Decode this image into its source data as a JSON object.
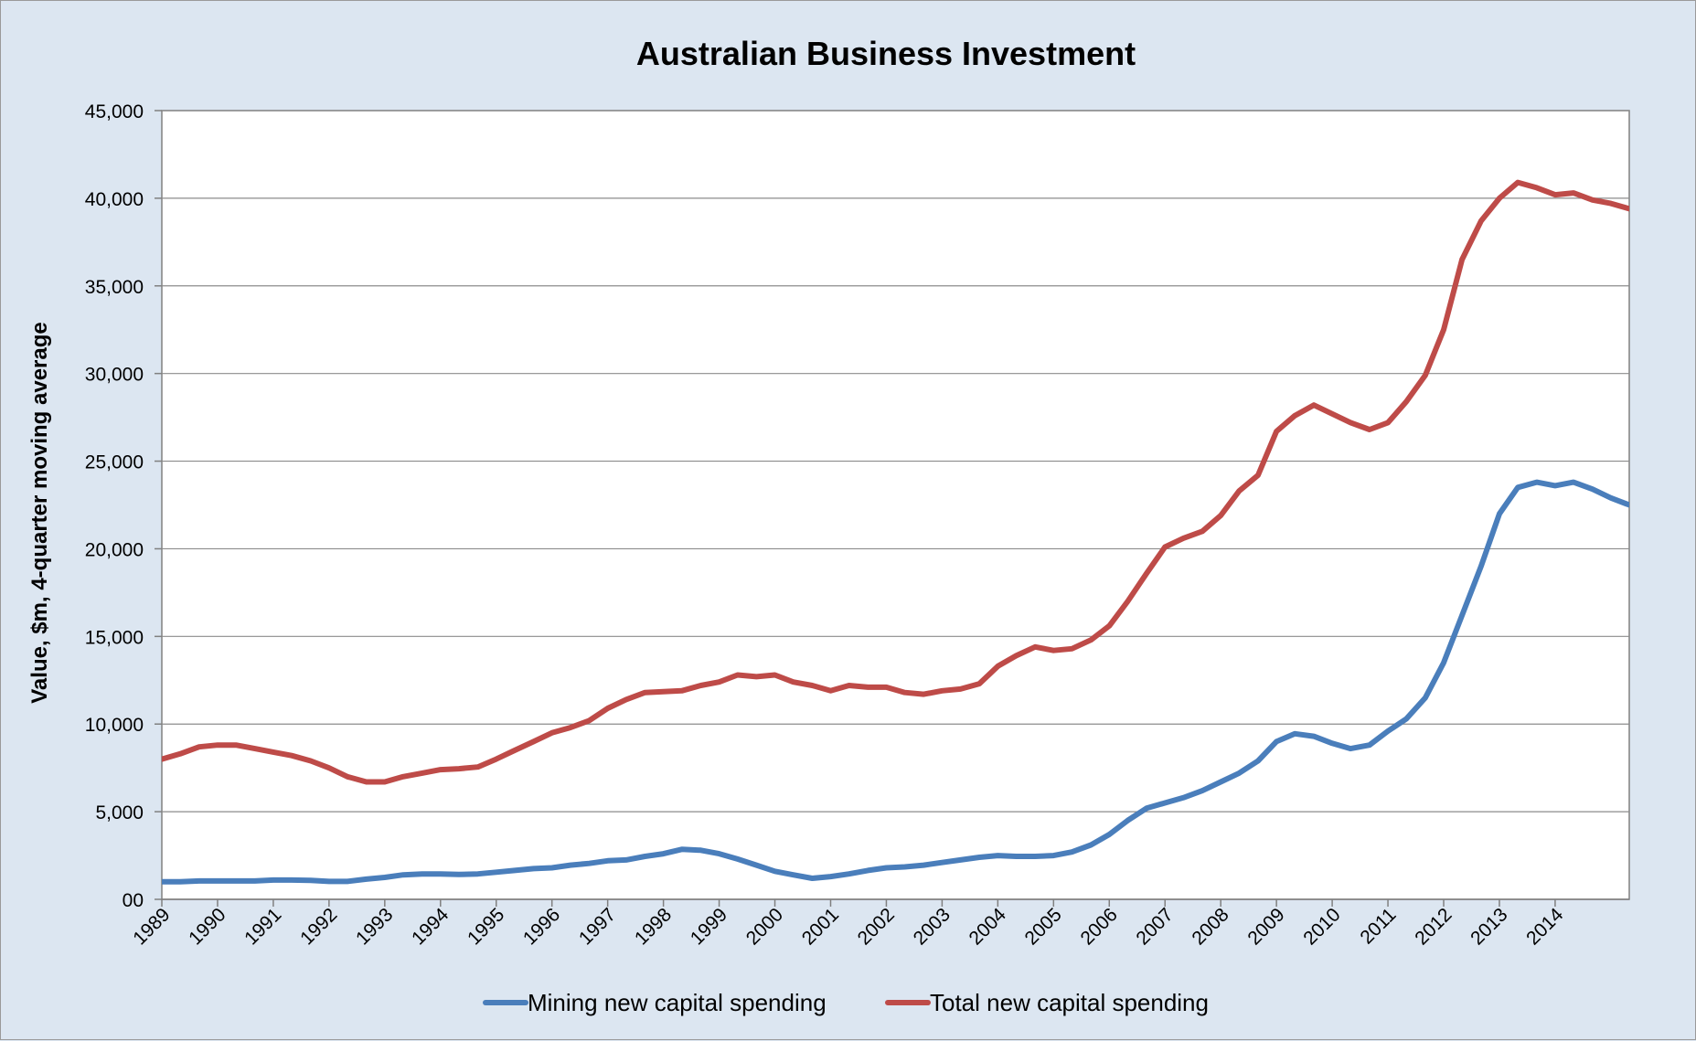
{
  "chart_data": {
    "type": "line",
    "title": "Australian Business Investment",
    "xlabel": "",
    "ylabel": "Value, $m, 4-quarter moving average",
    "ylim": [
      0,
      45000
    ],
    "xlim": [
      1989,
      2014.33
    ],
    "y_ticks": [
      "00",
      "5,000",
      "10,000",
      "15,000",
      "20,000",
      "25,000",
      "30,000",
      "35,000",
      "40,000",
      "45,000"
    ],
    "x_ticks": [
      "1989",
      "1990",
      "1991",
      "1992",
      "1993",
      "1994",
      "1995",
      "1996",
      "1997",
      "1998",
      "1999",
      "2000",
      "2001",
      "2002",
      "2003",
      "2004",
      "2005",
      "2006",
      "2007",
      "2008",
      "2009",
      "2010",
      "2011",
      "2012",
      "2013",
      "2014"
    ],
    "grid": true,
    "legend_position": "bottom",
    "series": [
      {
        "name": "Mining new capital spending",
        "color": "#4a7ebb",
        "points": [
          [
            1989.0,
            1000
          ],
          [
            1989.33,
            1000
          ],
          [
            1989.67,
            1050
          ],
          [
            1990.0,
            1050
          ],
          [
            1990.33,
            1050
          ],
          [
            1990.67,
            1050
          ],
          [
            1991.0,
            1100
          ],
          [
            1991.33,
            1100
          ],
          [
            1991.67,
            1080
          ],
          [
            1992.0,
            1020
          ],
          [
            1992.33,
            1020
          ],
          [
            1992.67,
            1150
          ],
          [
            1993.0,
            1250
          ],
          [
            1993.33,
            1400
          ],
          [
            1993.67,
            1450
          ],
          [
            1994.0,
            1450
          ],
          [
            1994.33,
            1420
          ],
          [
            1994.67,
            1450
          ],
          [
            1995.0,
            1550
          ],
          [
            1995.33,
            1650
          ],
          [
            1995.67,
            1750
          ],
          [
            1996.0,
            1800
          ],
          [
            1996.33,
            1950
          ],
          [
            1996.67,
            2050
          ],
          [
            1997.0,
            2200
          ],
          [
            1997.33,
            2250
          ],
          [
            1997.67,
            2450
          ],
          [
            1998.0,
            2600
          ],
          [
            1998.33,
            2850
          ],
          [
            1998.67,
            2800
          ],
          [
            1999.0,
            2600
          ],
          [
            1999.33,
            2300
          ],
          [
            1999.67,
            1950
          ],
          [
            2000.0,
            1600
          ],
          [
            2000.33,
            1400
          ],
          [
            2000.67,
            1200
          ],
          [
            2001.0,
            1300
          ],
          [
            2001.33,
            1450
          ],
          [
            2001.67,
            1650
          ],
          [
            2002.0,
            1800
          ],
          [
            2002.33,
            1850
          ],
          [
            2002.67,
            1950
          ],
          [
            2003.0,
            2100
          ],
          [
            2003.33,
            2250
          ],
          [
            2003.67,
            2400
          ],
          [
            2004.0,
            2500
          ],
          [
            2004.33,
            2450
          ],
          [
            2004.67,
            2450
          ],
          [
            2005.0,
            2500
          ],
          [
            2005.33,
            2700
          ],
          [
            2005.67,
            3100
          ],
          [
            2006.0,
            3700
          ],
          [
            2006.33,
            4500
          ],
          [
            2006.67,
            5200
          ],
          [
            2007.0,
            5500
          ],
          [
            2007.33,
            5800
          ],
          [
            2007.67,
            6200
          ],
          [
            2008.0,
            6700
          ],
          [
            2008.33,
            7200
          ],
          [
            2008.67,
            7900
          ],
          [
            2009.0,
            9000
          ],
          [
            2009.33,
            9450
          ],
          [
            2009.67,
            9300
          ],
          [
            2010.0,
            8900
          ],
          [
            2010.33,
            8600
          ],
          [
            2010.67,
            8800
          ],
          [
            2011.0,
            9600
          ],
          [
            2011.33,
            10300
          ],
          [
            2011.67,
            11500
          ],
          [
            2012.0,
            13500
          ],
          [
            2012.33,
            16200
          ],
          [
            2012.67,
            19000
          ],
          [
            2013.0,
            22000
          ],
          [
            2013.33,
            23500
          ],
          [
            2013.67,
            23800
          ],
          [
            2014.0,
            23600
          ],
          [
            2014.33,
            23800
          ],
          [
            2014.67,
            23400
          ],
          [
            2015.0,
            22900
          ],
          [
            2015.33,
            22500
          ]
        ]
      },
      {
        "name": "Total new capital spending",
        "color": "#be4b48",
        "points": [
          [
            1989.0,
            8000
          ],
          [
            1989.33,
            8300
          ],
          [
            1989.67,
            8700
          ],
          [
            1990.0,
            8800
          ],
          [
            1990.33,
            8800
          ],
          [
            1990.67,
            8600
          ],
          [
            1991.0,
            8400
          ],
          [
            1991.33,
            8200
          ],
          [
            1991.67,
            7900
          ],
          [
            1992.0,
            7500
          ],
          [
            1992.33,
            7000
          ],
          [
            1992.67,
            6700
          ],
          [
            1993.0,
            6700
          ],
          [
            1993.33,
            7000
          ],
          [
            1993.67,
            7200
          ],
          [
            1994.0,
            7400
          ],
          [
            1994.33,
            7450
          ],
          [
            1994.67,
            7550
          ],
          [
            1995.0,
            8000
          ],
          [
            1995.33,
            8500
          ],
          [
            1995.67,
            9000
          ],
          [
            1996.0,
            9500
          ],
          [
            1996.33,
            9800
          ],
          [
            1996.67,
            10200
          ],
          [
            1997.0,
            10900
          ],
          [
            1997.33,
            11400
          ],
          [
            1997.67,
            11800
          ],
          [
            1998.0,
            11850
          ],
          [
            1998.33,
            11900
          ],
          [
            1998.67,
            12200
          ],
          [
            1999.0,
            12400
          ],
          [
            1999.33,
            12800
          ],
          [
            1999.67,
            12700
          ],
          [
            2000.0,
            12800
          ],
          [
            2000.33,
            12400
          ],
          [
            2000.67,
            12200
          ],
          [
            2001.0,
            11900
          ],
          [
            2001.33,
            12200
          ],
          [
            2001.67,
            12100
          ],
          [
            2002.0,
            12100
          ],
          [
            2002.33,
            11800
          ],
          [
            2002.67,
            11700
          ],
          [
            2003.0,
            11900
          ],
          [
            2003.33,
            12000
          ],
          [
            2003.67,
            12300
          ],
          [
            2004.0,
            13300
          ],
          [
            2004.33,
            13900
          ],
          [
            2004.67,
            14400
          ],
          [
            2005.0,
            14200
          ],
          [
            2005.33,
            14300
          ],
          [
            2005.67,
            14800
          ],
          [
            2006.0,
            15600
          ],
          [
            2006.33,
            17000
          ],
          [
            2006.67,
            18600
          ],
          [
            2007.0,
            20100
          ],
          [
            2007.33,
            20600
          ],
          [
            2007.67,
            21000
          ],
          [
            2008.0,
            21900
          ],
          [
            2008.33,
            23300
          ],
          [
            2008.67,
            24200
          ],
          [
            2009.0,
            26700
          ],
          [
            2009.33,
            27600
          ],
          [
            2009.67,
            28200
          ],
          [
            2010.0,
            27700
          ],
          [
            2010.33,
            27200
          ],
          [
            2010.67,
            26800
          ],
          [
            2011.0,
            27200
          ],
          [
            2011.33,
            28400
          ],
          [
            2011.67,
            29900
          ],
          [
            2012.0,
            32500
          ],
          [
            2012.33,
            36500
          ],
          [
            2012.67,
            38700
          ],
          [
            2013.0,
            40000
          ],
          [
            2013.33,
            40900
          ],
          [
            2013.67,
            40600
          ],
          [
            2014.0,
            40200
          ],
          [
            2014.33,
            40300
          ],
          [
            2014.67,
            39900
          ],
          [
            2015.0,
            39700
          ],
          [
            2015.33,
            39400
          ]
        ]
      }
    ]
  }
}
